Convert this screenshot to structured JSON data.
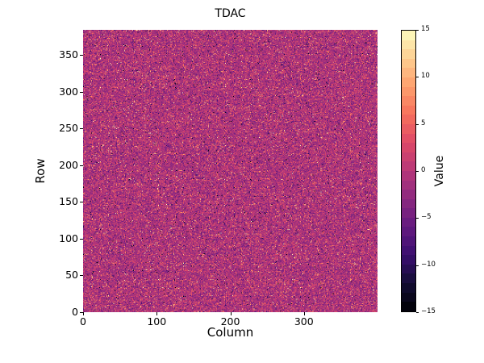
{
  "title": "TDAC",
  "axes": {
    "xlabel": "Column",
    "ylabel": "Row",
    "x_ticks": [
      0,
      100,
      200,
      300
    ],
    "y_ticks": [
      0,
      50,
      100,
      150,
      200,
      250,
      300,
      350
    ]
  },
  "colorbar": {
    "label": "Value",
    "ticks": [
      15,
      10,
      5,
      0,
      -5,
      -10,
      -15
    ],
    "segments": 30,
    "border_color": "#000000"
  },
  "chart_data": {
    "type": "heatmap",
    "title": "TDAC",
    "xlabel": "Column",
    "ylabel": "Row",
    "colorbar_label": "Value",
    "cols": 400,
    "rows": 384,
    "xlim": [
      0,
      400
    ],
    "ylim": [
      0,
      384
    ],
    "vmin": -15,
    "vmax": 15,
    "value_type": "integer",
    "discrete_levels": 30,
    "colormap": "magma",
    "grid": false,
    "legend": "colorbar-right",
    "distribution": {
      "description": "random pixel noise centered slightly below 0 with sparse bright and dark outliers",
      "seed": 12345,
      "base": {
        "kind": "gaussian",
        "mean": -1.0,
        "sd": 2.4
      },
      "mixtures": [
        {
          "kind": "uniform",
          "min": 2,
          "max": 10,
          "weight": 0.07
        },
        {
          "kind": "uniform",
          "min": 10,
          "max": 15,
          "weight": 0.012
        },
        {
          "kind": "uniform",
          "min": -15,
          "max": -6,
          "weight": 0.018
        }
      ]
    }
  },
  "colors": {
    "background": "#ffffff",
    "text": "#000000",
    "magma_stops": [
      "#000004",
      "#140e36",
      "#3b0f70",
      "#641a80",
      "#8c2981",
      "#b73779",
      "#de4968",
      "#f7705c",
      "#fe9f6d",
      "#fece91",
      "#fcfdbf"
    ]
  }
}
